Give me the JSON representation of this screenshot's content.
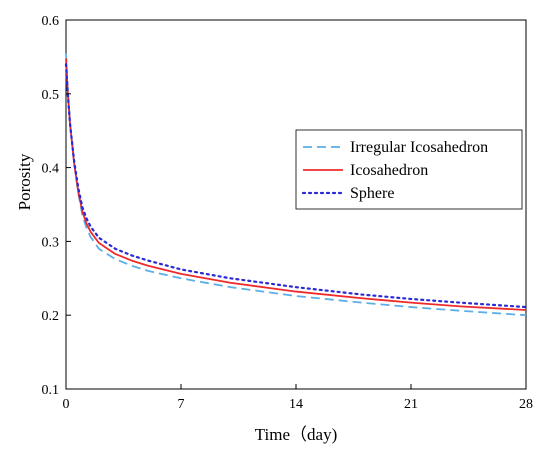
{
  "chart_data": {
    "type": "line",
    "title": "",
    "xlabel": "Time（day)",
    "ylabel": "Porosity",
    "xlim": [
      0,
      28
    ],
    "ylim": [
      0.1,
      0.6
    ],
    "xticks": [
      0,
      7,
      14,
      21,
      28
    ],
    "yticks": [
      0.1,
      0.2,
      0.3,
      0.4,
      0.5,
      0.6
    ],
    "xtick_labels": [
      "0",
      "7",
      "14",
      "21",
      "28"
    ],
    "ytick_labels": [
      "0.1",
      "0.2",
      "0.3",
      "0.4",
      "0.5",
      "0.6"
    ],
    "grid": false,
    "legend_position": "right",
    "series": [
      {
        "name": "Irregular Icosahedron",
        "style": "dashed",
        "color": "#5aafe6",
        "x": [
          0,
          0.1,
          0.25,
          0.5,
          0.75,
          1.0,
          1.25,
          1.5,
          2,
          3,
          4,
          5,
          7,
          10,
          14,
          18,
          21,
          24,
          28
        ],
        "y": [
          0.555,
          0.51,
          0.46,
          0.405,
          0.365,
          0.335,
          0.318,
          0.306,
          0.29,
          0.276,
          0.267,
          0.26,
          0.25,
          0.238,
          0.226,
          0.217,
          0.211,
          0.206,
          0.2
        ]
      },
      {
        "name": "Icosahedron",
        "style": "solid",
        "color": "#ee2b2b",
        "x": [
          0,
          0.1,
          0.25,
          0.5,
          0.75,
          1.0,
          1.25,
          1.5,
          2,
          3,
          4,
          5,
          7,
          10,
          14,
          18,
          21,
          24,
          28
        ],
        "y": [
          0.548,
          0.505,
          0.458,
          0.405,
          0.367,
          0.34,
          0.324,
          0.313,
          0.298,
          0.283,
          0.274,
          0.267,
          0.256,
          0.244,
          0.232,
          0.223,
          0.217,
          0.212,
          0.207
        ]
      },
      {
        "name": "Sphere",
        "style": "dotted",
        "color": "#2a2ad6",
        "x": [
          0,
          0.1,
          0.25,
          0.5,
          0.75,
          1.0,
          1.25,
          1.5,
          2,
          3,
          4,
          5,
          7,
          10,
          14,
          18,
          21,
          24,
          28
        ],
        "y": [
          0.54,
          0.502,
          0.458,
          0.408,
          0.372,
          0.346,
          0.331,
          0.32,
          0.305,
          0.29,
          0.281,
          0.274,
          0.262,
          0.25,
          0.238,
          0.228,
          0.222,
          0.217,
          0.211
        ]
      }
    ]
  }
}
